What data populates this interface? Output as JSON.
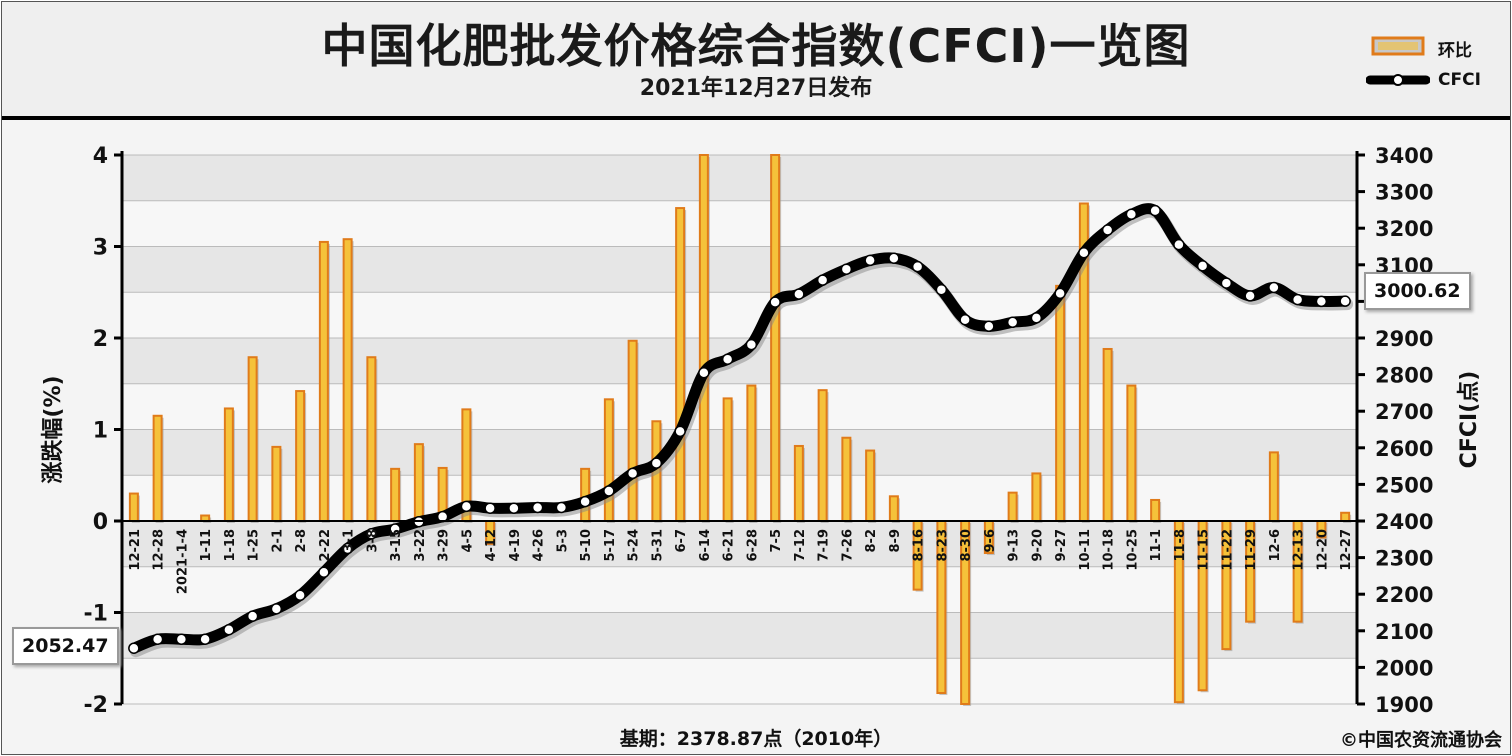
{
  "header": {
    "title": "中国化肥批发价格综合指数(CFCI)一览图",
    "subtitle": "2021年12月27日发布"
  },
  "legend": {
    "bar_label": "环比",
    "line_label": "CFCI"
  },
  "footer": {
    "base_period": "基期：2378.87点（2010年）",
    "copyright": "©中国农资流通协会"
  },
  "callouts": {
    "start_value": "2052.47",
    "end_value": "3000.62"
  },
  "colors": {
    "bar_fill": "#f5c23a",
    "bar_edge": "#e07b1a",
    "line": "#000000",
    "marker_fill": "#ffffff",
    "band": "#e6e6e6",
    "grid": "#bbbbbb"
  },
  "chart_data": {
    "type": "bar+line",
    "ylabel_left": "涨跌幅(%)",
    "ylabel_right": "CFCI(点)",
    "ylim_left": [
      -2,
      4
    ],
    "ylim_right": [
      1900,
      3400
    ],
    "yticks_left": [
      "4",
      "3",
      "2",
      "1",
      "0",
      "-1",
      "-2"
    ],
    "yticks_right": [
      "3400",
      "3300",
      "3200",
      "3100",
      "3000",
      "2900",
      "2800",
      "2700",
      "2600",
      "2500",
      "2400",
      "2300",
      "2200",
      "2100",
      "2000",
      "1900"
    ],
    "categories": [
      "12-21",
      "12-28",
      "2021-1-4",
      "1-11",
      "1-18",
      "1-25",
      "2-1",
      "2-8",
      "2-22",
      "3-1",
      "3-8",
      "3-15",
      "3-22",
      "3-29",
      "4-5",
      "4-12",
      "4-19",
      "4-26",
      "5-3",
      "5-10",
      "5-17",
      "5-24",
      "5-31",
      "6-7",
      "6-14",
      "6-21",
      "6-28",
      "7-5",
      "7-12",
      "7-19",
      "7-26",
      "8-2",
      "8-9",
      "8-16",
      "8-23",
      "8-30",
      "9-6",
      "9-13",
      "9-20",
      "9-27",
      "10-11",
      "10-18",
      "10-25",
      "11-1",
      "11-8",
      "11-15",
      "11-22",
      "11-29",
      "12-6",
      "12-13",
      "12-20",
      "12-27"
    ],
    "series": [
      {
        "name": "环比",
        "axis": "left",
        "values": [
          0.3,
          1.15,
          0.0,
          0.06,
          1.23,
          1.79,
          0.81,
          1.42,
          3.05,
          3.08,
          1.79,
          0.57,
          0.84,
          0.58,
          1.22,
          -0.25,
          0.0,
          0.0,
          0.0,
          0.57,
          1.33,
          1.97,
          1.09,
          3.42,
          4.0,
          1.34,
          1.48,
          4.0,
          0.82,
          1.43,
          0.91,
          0.77,
          0.27,
          -0.75,
          -1.88,
          -2.0,
          -0.35,
          0.31,
          0.52,
          2.57,
          3.47,
          1.88,
          1.48,
          0.23,
          -1.98,
          -1.85,
          -1.4,
          -1.1,
          0.75,
          -1.1,
          -0.18,
          0.09
        ]
      },
      {
        "name": "CFCI",
        "axis": "right",
        "values": [
          2052.47,
          2077,
          2077,
          2077,
          2103,
          2140,
          2160,
          2197,
          2260,
          2325,
          2365,
          2378,
          2398,
          2412,
          2440,
          2435,
          2435,
          2437,
          2437,
          2453,
          2482,
          2530,
          2558,
          2645,
          2805,
          2842,
          2882,
          2998,
          3020,
          3058,
          3088,
          3112,
          3118,
          3095,
          3032,
          2950,
          2932,
          2943,
          2955,
          3022,
          3133,
          3195,
          3238,
          3248,
          3155,
          3097,
          3050,
          3015,
          3038,
          3005,
          3000,
          3000.62
        ]
      }
    ],
    "grid": true
  }
}
